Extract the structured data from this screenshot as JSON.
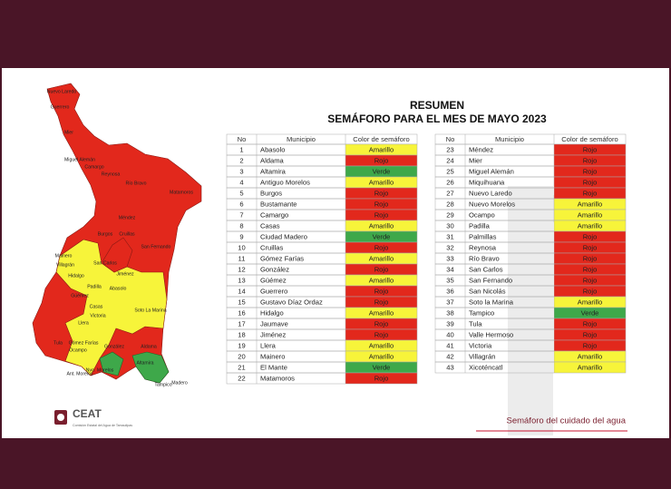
{
  "header": {
    "title": "RESUMEN",
    "subtitle": "SEMÁFORO PARA EL MES DE MAYO 2023"
  },
  "status_colors": {
    "Rojo": "#e2281c",
    "Amarillo": "#f7f43a",
    "Verde": "#3ea84a"
  },
  "table_columns": [
    "No",
    "Municipio",
    "Color de semáforo"
  ],
  "tables": [
    {
      "rows": [
        [
          1,
          "Abasolo",
          "Amarillo"
        ],
        [
          2,
          "Aldama",
          "Rojo"
        ],
        [
          3,
          "Altamira",
          "Verde"
        ],
        [
          4,
          "Antiguo Morelos",
          "Amarillo"
        ],
        [
          5,
          "Burgos",
          "Rojo"
        ],
        [
          6,
          "Bustamante",
          "Rojo"
        ],
        [
          7,
          "Camargo",
          "Rojo"
        ],
        [
          8,
          "Casas",
          "Amarillo"
        ],
        [
          9,
          "Ciudad Madero",
          "Verde"
        ],
        [
          10,
          "Cruillas",
          "Rojo"
        ],
        [
          11,
          "Gómez Farías",
          "Amarillo"
        ],
        [
          12,
          "González",
          "Rojo"
        ],
        [
          13,
          "Güémez",
          "Amarillo"
        ],
        [
          14,
          "Guerrero",
          "Rojo"
        ],
        [
          15,
          "Gustavo Díaz Ordaz",
          "Rojo"
        ],
        [
          16,
          "Hidalgo",
          "Amarillo"
        ],
        [
          17,
          "Jaumave",
          "Rojo"
        ],
        [
          18,
          "Jiménez",
          "Rojo"
        ],
        [
          19,
          "Llera",
          "Amarillo"
        ],
        [
          20,
          "Mainero",
          "Amarillo"
        ],
        [
          21,
          "El Mante",
          "Verde"
        ],
        [
          22,
          "Matamoros",
          "Rojo"
        ]
      ]
    },
    {
      "rows": [
        [
          23,
          "Méndez",
          "Rojo"
        ],
        [
          24,
          "Mier",
          "Rojo"
        ],
        [
          25,
          "Miguel Alemán",
          "Rojo"
        ],
        [
          26,
          "Miquihuana",
          "Rojo"
        ],
        [
          27,
          "Nuevo Laredo",
          "Rojo"
        ],
        [
          28,
          "Nuevo Morelos",
          "Amarillo"
        ],
        [
          29,
          "Ocampo",
          "Amarillo"
        ],
        [
          30,
          "Padilla",
          "Amarillo"
        ],
        [
          31,
          "Palmillas",
          "Rojo"
        ],
        [
          32,
          "Reynosa",
          "Rojo"
        ],
        [
          33,
          "Río Bravo",
          "Rojo"
        ],
        [
          34,
          "San Carlos",
          "Rojo"
        ],
        [
          35,
          "San Fernando",
          "Rojo"
        ],
        [
          36,
          "San Nicolás",
          "Rojo"
        ],
        [
          37,
          "Soto la Marina",
          "Amarillo"
        ],
        [
          38,
          "Tampico",
          "Verde"
        ],
        [
          39,
          "Tula",
          "Rojo"
        ],
        [
          40,
          "Valle Hermoso",
          "Rojo"
        ],
        [
          41,
          "Victoria",
          "Rojo"
        ],
        [
          42,
          "Villagrán",
          "Amarillo"
        ],
        [
          43,
          "Xicoténcatl",
          "Amarillo"
        ]
      ]
    }
  ],
  "map": {
    "labels": [
      "Nuevo Laredo",
      "Guerrero",
      "Mier",
      "Miguel Alemán",
      "Camargo",
      "Reynosa",
      "Río Bravo",
      "Matamoros",
      "Méndez",
      "Burgos",
      "Cruillas",
      "San Fernando",
      "Mainero",
      "Villagrán",
      "Hidalgo",
      "San Carlos",
      "Jiménez",
      "Padilla",
      "Abasolo",
      "Güémez",
      "Casas",
      "Soto La Marina",
      "Victoria",
      "Llera",
      "Tula",
      "Gómez Farías",
      "Ocampo",
      "González",
      "Aldama",
      "Altamira",
      "Ant. Morelos",
      "Nvo. Morelos",
      "Tampico",
      "Madero"
    ]
  },
  "logo": {
    "name": "CEAT",
    "subtitle": "Comisión Estatal del Agua de Tamaulipas"
  },
  "footer": {
    "tagline": "Semáforo del cuidado del agua"
  }
}
